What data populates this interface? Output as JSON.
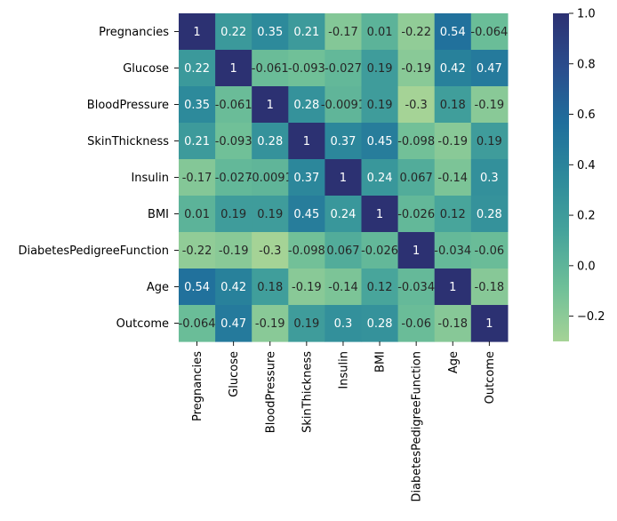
{
  "chart_data": {
    "type": "heatmap",
    "title": "",
    "xlabel": "",
    "ylabel": "",
    "row_labels": [
      "Pregnancies",
      "Glucose",
      "BloodPressure",
      "SkinThickness",
      "Insulin",
      "BMI",
      "DiabetesPedigreeFunction",
      "Age",
      "Outcome"
    ],
    "col_labels": [
      "Pregnancies",
      "Glucose",
      "BloodPressure",
      "SkinThickness",
      "Insulin",
      "BMI",
      "DiabetesPedigreeFunction",
      "Age",
      "Outcome"
    ],
    "values": [
      [
        1,
        0.22,
        0.35,
        0.21,
        -0.17,
        0.01,
        -0.22,
        0.54,
        -0.064
      ],
      [
        0.22,
        1,
        -0.061,
        -0.093,
        -0.027,
        0.19,
        -0.19,
        0.42,
        0.47
      ],
      [
        0.35,
        -0.061,
        1,
        0.28,
        -0.0091,
        0.19,
        -0.3,
        0.18,
        -0.19
      ],
      [
        0.21,
        -0.093,
        0.28,
        1,
        0.37,
        0.45,
        -0.098,
        -0.19,
        0.19
      ],
      [
        -0.17,
        -0.027,
        -0.0091,
        0.37,
        1,
        0.24,
        0.067,
        -0.14,
        0.3
      ],
      [
        0.01,
        0.19,
        0.19,
        0.45,
        0.24,
        1,
        -0.026,
        0.12,
        0.28
      ],
      [
        -0.22,
        -0.19,
        -0.3,
        -0.098,
        0.067,
        -0.026,
        1,
        -0.034,
        -0.06
      ],
      [
        0.54,
        0.42,
        0.18,
        -0.19,
        -0.14,
        0.12,
        -0.034,
        1,
        -0.18
      ],
      [
        -0.064,
        0.47,
        -0.19,
        0.19,
        0.3,
        0.28,
        -0.06,
        -0.18,
        1
      ]
    ],
    "annotations": [
      [
        "1",
        "0.22",
        "0.35",
        "0.21",
        "-0.17",
        "0.01",
        "-0.22",
        "0.54",
        "-0.064"
      ],
      [
        "0.22",
        "1",
        "-0.061",
        "-0.093",
        "-0.027",
        "0.19",
        "-0.19",
        "0.42",
        "0.47"
      ],
      [
        "0.35",
        "-0.061",
        "1",
        "0.28",
        "-0.0091",
        "0.19",
        "-0.3",
        "0.18",
        "-0.19"
      ],
      [
        "0.21",
        "-0.093",
        "0.28",
        "1",
        "0.37",
        "0.45",
        "-0.098",
        "-0.19",
        "0.19"
      ],
      [
        "-0.17",
        "-0.027",
        "-0.0091",
        "0.37",
        "1",
        "0.24",
        "0.067",
        "-0.14",
        "0.3"
      ],
      [
        "0.01",
        "0.19",
        "0.19",
        "0.45",
        "0.24",
        "1",
        "-0.026",
        "0.12",
        "0.28"
      ],
      [
        "-0.22",
        "-0.19",
        "-0.3",
        "-0.098",
        "0.067",
        "-0.026",
        "1",
        "-0.034",
        "-0.06"
      ],
      [
        "0.54",
        "0.42",
        "0.18",
        "-0.19",
        "-0.14",
        "0.12",
        "-0.034",
        "1",
        "-0.18"
      ],
      [
        "-0.064",
        "0.47",
        "-0.19",
        "0.19",
        "0.3",
        "0.28",
        "-0.06",
        "-0.18",
        "1"
      ]
    ],
    "colorscale": {
      "name": "crest",
      "vmin": -0.3,
      "vmax": 1.0,
      "stops": [
        "#a5d396",
        "#6ebf98",
        "#45a39b",
        "#2d8a9b",
        "#1f6e9c",
        "#2a4d8d",
        "#2c3172"
      ]
    },
    "colorbar_ticks": [
      1.0,
      0.8,
      0.6,
      0.4,
      0.2,
      0.0,
      -0.2
    ],
    "colorbar_tick_labels": [
      "1.0",
      "0.8",
      "0.6",
      "0.4",
      "0.2",
      "0.0",
      "−0.2"
    ],
    "grid": false,
    "legend": "colorbar-right"
  }
}
